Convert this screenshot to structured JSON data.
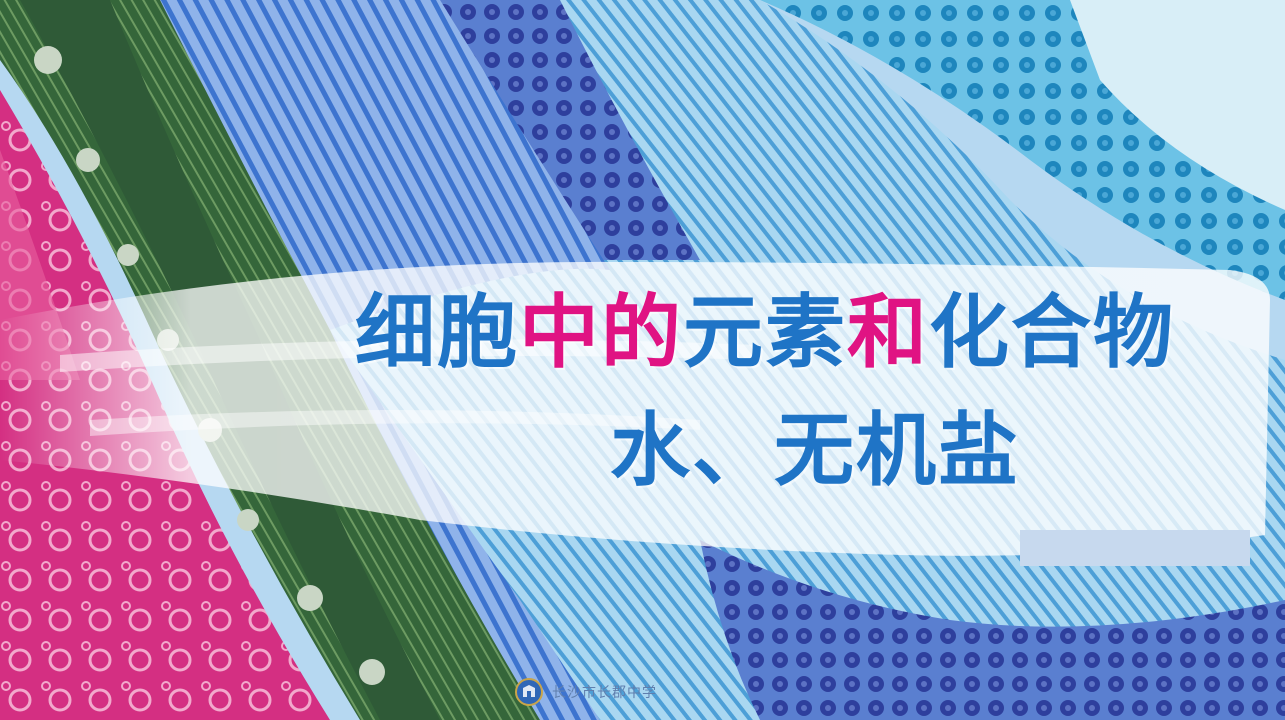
{
  "slide": {
    "title_line1": [
      {
        "text": "细胞",
        "color": "#1f74c6"
      },
      {
        "text": "中的",
        "color": "#e01383"
      },
      {
        "text": "元素",
        "color": "#1f74c6"
      },
      {
        "text": "和",
        "color": "#e01383"
      },
      {
        "text": "化合物",
        "color": "#1f74c6"
      }
    ],
    "title_line2": "水、无机盐",
    "footer_school": "长沙市长郡中学"
  },
  "colors": {
    "accent_blue": "#1f74c6",
    "accent_pink": "#e01383",
    "cell_magenta": "#d4247a",
    "cell_green": "#3c6b40",
    "cell_blue": "#3e78c8",
    "cell_dark_blue": "#2b3f9e"
  },
  "icons": {
    "footer_logo": "school-emblem-icon"
  }
}
